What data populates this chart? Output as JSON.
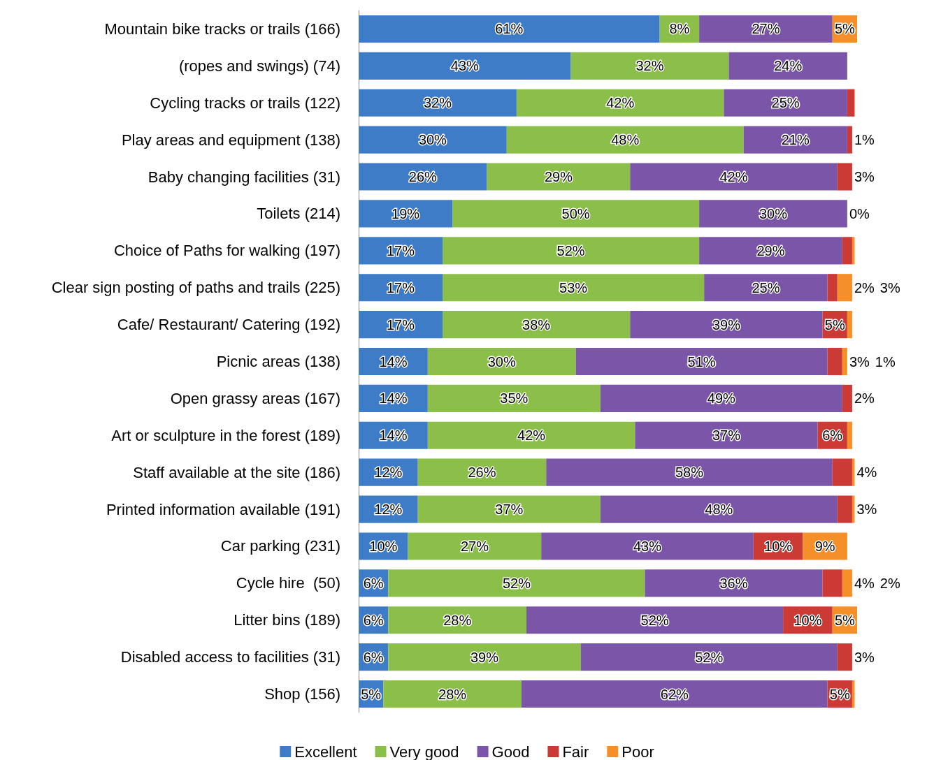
{
  "chart_data": {
    "type": "bar",
    "orientation": "horizontal",
    "stacked": true,
    "legend": "bottom",
    "grid": false,
    "tick_labels": "y",
    "categories": [
      "Mountain bike tracks or trails (166)",
      "(ropes and swings) (74)",
      "Cycling tracks or trails (122)",
      "Play areas and equipment (138)",
      "Baby changing facilities (31)",
      "Toilets (214)",
      "Choice of Paths for walking (197)",
      "Clear sign posting of paths and trails (225)",
      "Cafe/ Restaurant/ Catering (192)",
      "Picnic areas (138)",
      "Open grassy areas (167)",
      "Art or sculpture in the forest (189)",
      "Staff available at the site (186)",
      "Printed information available (191)",
      "Car parking (231)",
      "Cycle hire  (50)",
      "Litter bins (189)",
      "Disabled access to facilities (31)",
      "Shop (156)"
    ],
    "series": [
      {
        "name": "Excellent",
        "color": "#3f7cc8",
        "values": [
          61,
          43,
          32,
          30,
          26,
          19,
          17,
          17,
          17,
          14,
          14,
          14,
          12,
          12,
          10,
          6,
          6,
          6,
          5
        ],
        "value_labels": [
          "61%",
          "43%",
          "32%",
          "30%",
          "26%",
          "19%",
          "17%",
          "17%",
          "17%",
          "14%",
          "14%",
          "14%",
          "12%",
          "12%",
          "10%",
          "6%",
          "6%",
          "6%",
          "5%"
        ]
      },
      {
        "name": "Very good",
        "color": "#8cbf4a",
        "values": [
          8,
          32,
          42,
          48,
          29,
          50,
          52,
          53,
          38,
          30,
          35,
          42,
          26,
          37,
          27,
          52,
          28,
          39,
          28
        ],
        "value_labels": [
          "8%",
          "32%",
          "42%",
          "48%",
          "29%",
          "50%",
          "52%",
          "53%",
          "38%",
          "30%",
          "35%",
          "42%",
          "26%",
          "37%",
          "27%",
          "52%",
          "28%",
          "39%",
          "28%"
        ]
      },
      {
        "name": "Good",
        "color": "#7b56a8",
        "values": [
          27,
          24,
          25,
          21,
          42,
          30,
          29,
          25,
          39,
          51,
          49,
          37,
          58,
          48,
          43,
          36,
          52,
          52,
          62
        ],
        "value_labels": [
          "27%",
          "24%",
          "25%",
          "21%",
          "42%",
          "30%",
          "29%",
          "25%",
          "39%",
          "51%",
          "49%",
          "37%",
          "58%",
          "48%",
          "43%",
          "36%",
          "52%",
          "52%",
          "62%"
        ]
      },
      {
        "name": "Fair",
        "color": "#cc3a36",
        "values": [
          null,
          null,
          1.5,
          1,
          3,
          0,
          2,
          2,
          5,
          3,
          2,
          6,
          4,
          3,
          10,
          4,
          10,
          3,
          5
        ],
        "value_labels": [
          null,
          null,
          null,
          "1%",
          "3%",
          "0%",
          null,
          "2%",
          "5%",
          "3%",
          "2%",
          "6%",
          "4%",
          "3%",
          "10%",
          "4%",
          "10%",
          "3%",
          "5%"
        ]
      },
      {
        "name": "Poor",
        "color": "#f58f2a",
        "values": [
          5,
          null,
          null,
          null,
          null,
          null,
          0.5,
          3,
          1,
          1,
          null,
          1,
          0.5,
          0.5,
          9,
          2,
          5,
          null,
          0.5
        ],
        "value_labels": [
          "5%",
          null,
          null,
          null,
          null,
          null,
          null,
          "3%",
          null,
          "1%",
          null,
          null,
          null,
          null,
          "9%",
          "2%",
          "5%",
          null,
          null
        ]
      }
    ]
  }
}
